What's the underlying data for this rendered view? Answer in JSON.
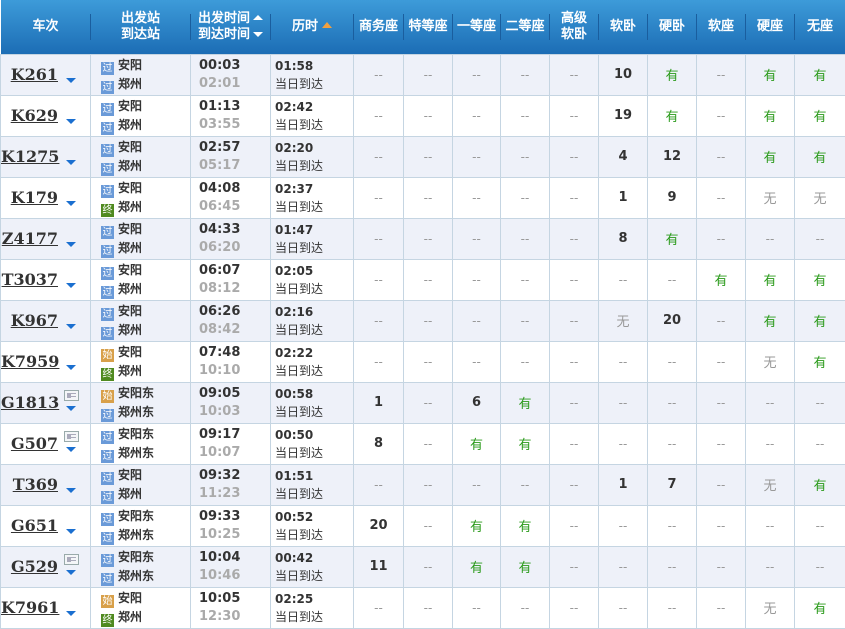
{
  "header": {
    "train": "车次",
    "station_from": "出发站",
    "station_to": "到达站",
    "time_dep": "出发时间",
    "time_arr": "到达时间",
    "duration": "历时",
    "seats": [
      "商务座",
      "特等座",
      "一等座",
      "二等座",
      "高级\n软卧",
      "软卧",
      "硬卧",
      "软座",
      "硬座",
      "无座"
    ]
  },
  "colors": {
    "header": "#1c6db5",
    "available": "#2a9a1a",
    "pass_badge": "#6a9ad8",
    "start_badge": "#d8a04a",
    "end_badge": "#4f8a20"
  },
  "badges": {
    "guo": "过",
    "shi": "始",
    "zhong": "终"
  },
  "arrive_same_day": "当日到达",
  "rows": [
    {
      "train": "K261",
      "card": false,
      "from_type": "guo",
      "from": "安阳",
      "to_type": "guo",
      "to": "郑州",
      "dep": "00:03",
      "arr": "02:01",
      "dur": "01:58",
      "seats": [
        "--",
        "--",
        "--",
        "--",
        "--",
        "10",
        "有",
        "--",
        "有",
        "有"
      ]
    },
    {
      "train": "K629",
      "card": false,
      "from_type": "guo",
      "from": "安阳",
      "to_type": "guo",
      "to": "郑州",
      "dep": "01:13",
      "arr": "03:55",
      "dur": "02:42",
      "seats": [
        "--",
        "--",
        "--",
        "--",
        "--",
        "19",
        "有",
        "--",
        "有",
        "有"
      ]
    },
    {
      "train": "K1275",
      "card": false,
      "from_type": "guo",
      "from": "安阳",
      "to_type": "guo",
      "to": "郑州",
      "dep": "02:57",
      "arr": "05:17",
      "dur": "02:20",
      "seats": [
        "--",
        "--",
        "--",
        "--",
        "--",
        "4",
        "12",
        "--",
        "有",
        "有"
      ]
    },
    {
      "train": "K179",
      "card": false,
      "from_type": "guo",
      "from": "安阳",
      "to_type": "zhong",
      "to": "郑州",
      "dep": "04:08",
      "arr": "06:45",
      "dur": "02:37",
      "seats": [
        "--",
        "--",
        "--",
        "--",
        "--",
        "1",
        "9",
        "--",
        "无",
        "无"
      ]
    },
    {
      "train": "Z4177",
      "card": false,
      "from_type": "guo",
      "from": "安阳",
      "to_type": "guo",
      "to": "郑州",
      "dep": "04:33",
      "arr": "06:20",
      "dur": "01:47",
      "seats": [
        "--",
        "--",
        "--",
        "--",
        "--",
        "8",
        "有",
        "--",
        "--",
        "--"
      ]
    },
    {
      "train": "T3037",
      "card": false,
      "from_type": "guo",
      "from": "安阳",
      "to_type": "guo",
      "to": "郑州",
      "dep": "06:07",
      "arr": "08:12",
      "dur": "02:05",
      "seats": [
        "--",
        "--",
        "--",
        "--",
        "--",
        "--",
        "--",
        "有",
        "有",
        "有"
      ]
    },
    {
      "train": "K967",
      "card": false,
      "from_type": "guo",
      "from": "安阳",
      "to_type": "guo",
      "to": "郑州",
      "dep": "06:26",
      "arr": "08:42",
      "dur": "02:16",
      "seats": [
        "--",
        "--",
        "--",
        "--",
        "--",
        "无",
        "20",
        "--",
        "有",
        "有"
      ]
    },
    {
      "train": "K7959",
      "card": false,
      "from_type": "shi",
      "from": "安阳",
      "to_type": "zhong",
      "to": "郑州",
      "dep": "07:48",
      "arr": "10:10",
      "dur": "02:22",
      "seats": [
        "--",
        "--",
        "--",
        "--",
        "--",
        "--",
        "--",
        "--",
        "无",
        "有"
      ]
    },
    {
      "train": "G1813",
      "card": true,
      "from_type": "shi",
      "from": "安阳东",
      "to_type": "guo",
      "to": "郑州东",
      "dep": "09:05",
      "arr": "10:03",
      "dur": "00:58",
      "seats": [
        "1",
        "--",
        "6",
        "有",
        "--",
        "--",
        "--",
        "--",
        "--",
        "--"
      ]
    },
    {
      "train": "G507",
      "card": true,
      "from_type": "guo",
      "from": "安阳东",
      "to_type": "guo",
      "to": "郑州东",
      "dep": "09:17",
      "arr": "10:07",
      "dur": "00:50",
      "seats": [
        "8",
        "--",
        "有",
        "有",
        "--",
        "--",
        "--",
        "--",
        "--",
        "--"
      ]
    },
    {
      "train": "T369",
      "card": false,
      "from_type": "guo",
      "from": "安阳",
      "to_type": "guo",
      "to": "郑州",
      "dep": "09:32",
      "arr": "11:23",
      "dur": "01:51",
      "seats": [
        "--",
        "--",
        "--",
        "--",
        "--",
        "1",
        "7",
        "--",
        "无",
        "有"
      ]
    },
    {
      "train": "G651",
      "card": false,
      "from_type": "guo",
      "from": "安阳东",
      "to_type": "guo",
      "to": "郑州东",
      "dep": "09:33",
      "arr": "10:25",
      "dur": "00:52",
      "seats": [
        "20",
        "--",
        "有",
        "有",
        "--",
        "--",
        "--",
        "--",
        "--",
        "--"
      ]
    },
    {
      "train": "G529",
      "card": true,
      "from_type": "guo",
      "from": "安阳东",
      "to_type": "guo",
      "to": "郑州东",
      "dep": "10:04",
      "arr": "10:46",
      "dur": "00:42",
      "seats": [
        "11",
        "--",
        "有",
        "有",
        "--",
        "--",
        "--",
        "--",
        "--",
        "--"
      ]
    },
    {
      "train": "K7961",
      "card": false,
      "from_type": "shi",
      "from": "安阳",
      "to_type": "zhong",
      "to": "郑州",
      "dep": "10:05",
      "arr": "12:30",
      "dur": "02:25",
      "seats": [
        "--",
        "--",
        "--",
        "--",
        "--",
        "--",
        "--",
        "--",
        "无",
        "有"
      ]
    }
  ]
}
